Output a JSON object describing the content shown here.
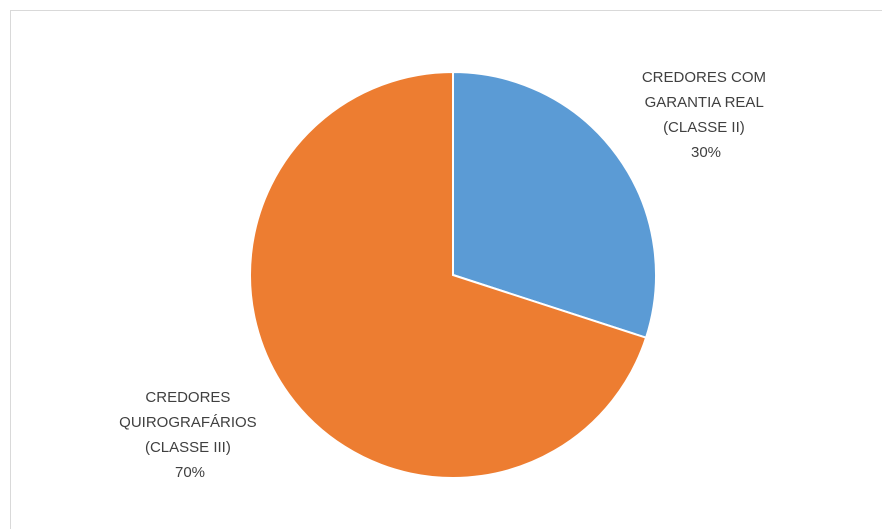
{
  "chart_data": {
    "type": "pie",
    "slices": [
      {
        "label_lines": [
          "CREDORES COM",
          "GARANTIA REAL",
          "(CLASSE II)"
        ],
        "value_label": "30%",
        "value": 30,
        "color": "#5B9BD5"
      },
      {
        "label_lines": [
          "CREDORES",
          "QUIROGRAFÁRIOS",
          "(CLASSE III)"
        ],
        "value_label": "70%",
        "value": 70,
        "color": "#ED7D31"
      }
    ],
    "start_angle": "12 o'clock",
    "direction": "clockwise",
    "legend": "none",
    "data_labels": "outside"
  }
}
